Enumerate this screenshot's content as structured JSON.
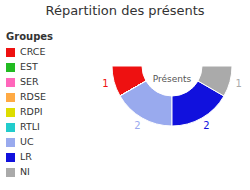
{
  "chart_data": {
    "type": "pie",
    "title": "Répartition des présents",
    "categories": [
      "CRCE",
      "EST",
      "SER",
      "RDSE",
      "RDPI",
      "RTLI",
      "UC",
      "LR",
      "NI"
    ],
    "values": [
      1,
      0,
      0,
      0,
      0,
      0,
      2,
      2,
      1
    ],
    "colors": [
      "#ee1111",
      "#22bb22",
      "#ff66bb",
      "#ffaa44",
      "#dddd00",
      "#22cccc",
      "#99aaee",
      "#1111dd",
      "#aaaaaa"
    ],
    "legend_title": "Groupes",
    "xlabel": "Présents",
    "data_labels": true,
    "legend": "left"
  }
}
